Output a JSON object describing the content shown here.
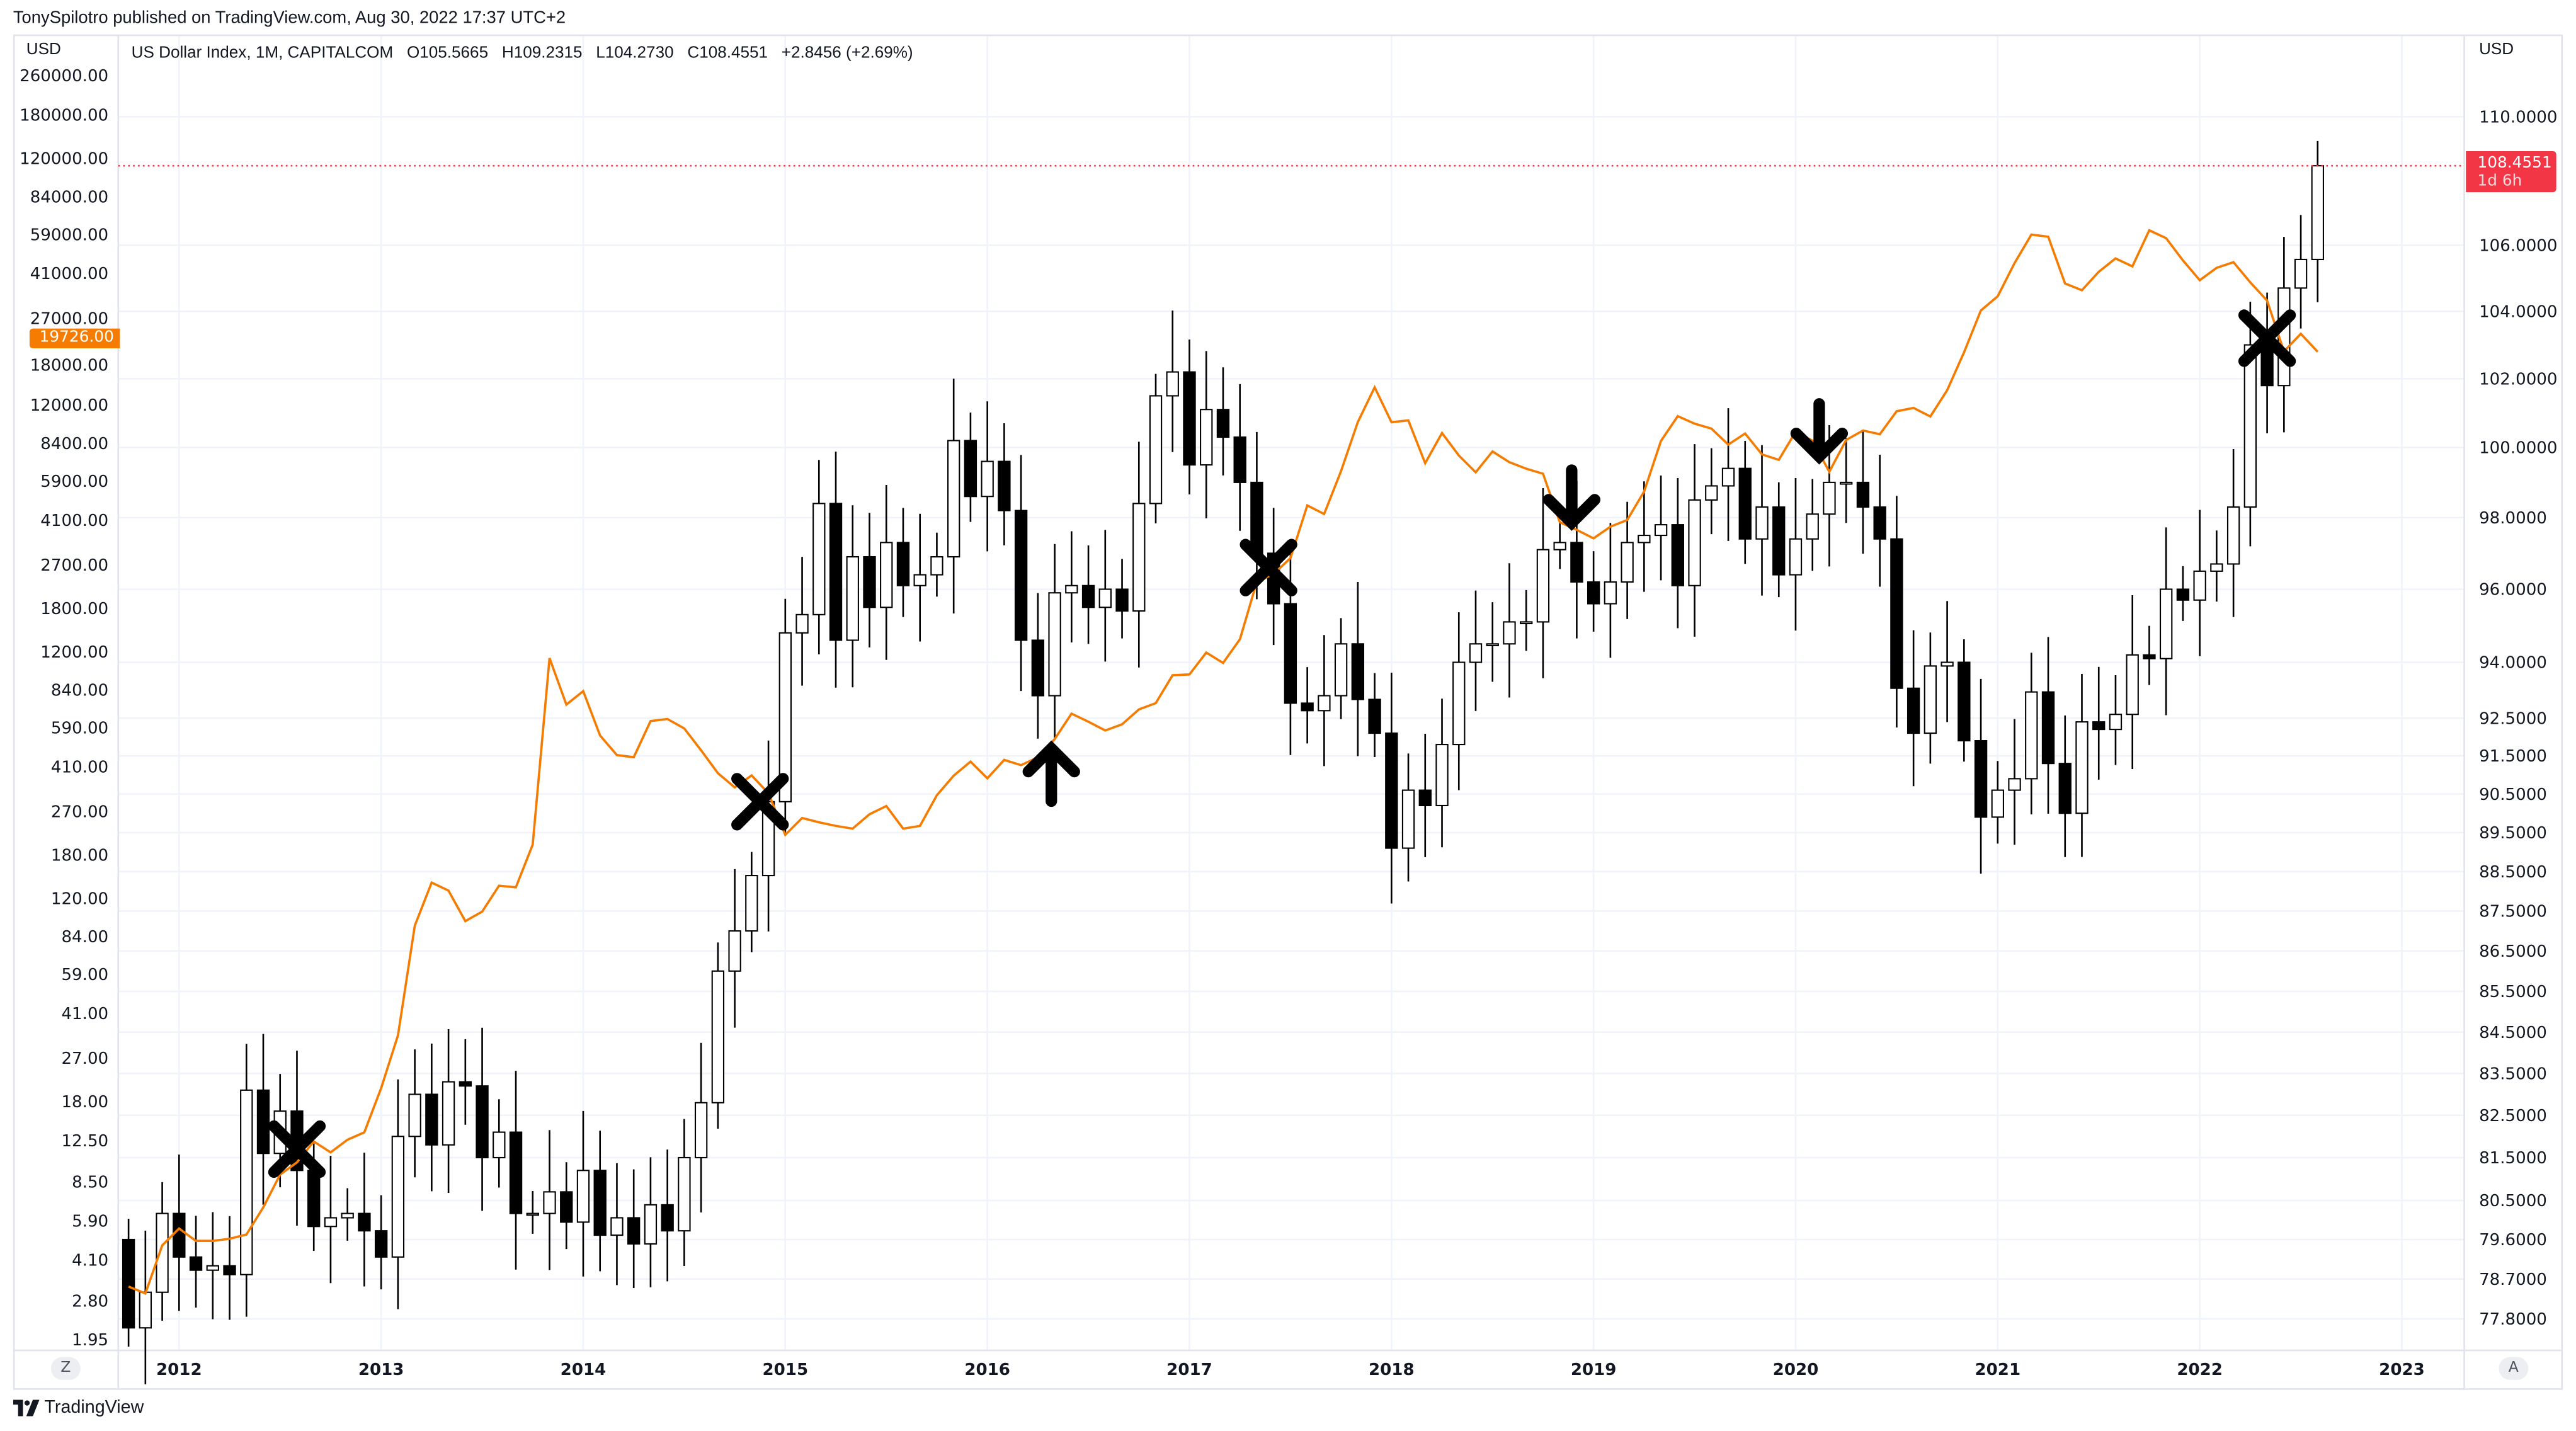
{
  "header": {
    "published": "TonySpilotro published on TradingView.com, Aug 30, 2022 17:37 UTC+2"
  },
  "legend": {
    "symbol": "US Dollar Index, 1M, CAPITALCOM",
    "open": "O105.5665",
    "high": "H109.2315",
    "low": "L104.2730",
    "close": "C108.4551",
    "change": "+2.8456 (+2.69%)"
  },
  "axes": {
    "left_unit": "USD",
    "right_unit": "USD",
    "z_button": "Z",
    "a_button": "A"
  },
  "price_label": {
    "value": "108.4551",
    "countdown": "1d 6h",
    "color": "#f23645"
  },
  "series_label": {
    "value": "19726.00",
    "color": "#f57c00"
  },
  "footer": {
    "brand": "TradingView"
  },
  "chart_data": {
    "type": "candlestick+line",
    "title": "US Dollar Index, 1M, CAPITALCOM",
    "start": "2011-10",
    "interval": "1M",
    "right_axis": {
      "scale": "log",
      "ticks": [
        "110.0000",
        "106.0000",
        "104.0000",
        "102.0000",
        "100.0000",
        "98.0000",
        "96.0000",
        "94.0000",
        "92.5000",
        "91.5000",
        "90.5000",
        "89.5000",
        "88.5000",
        "87.5000",
        "86.5000",
        "85.5000",
        "84.5000",
        "83.5000",
        "82.5000",
        "81.5000",
        "80.5000",
        "79.6000",
        "78.7000",
        "77.8000"
      ],
      "range": [
        77.3,
        111.5
      ]
    },
    "left_axis": {
      "scale": "log",
      "ticks": [
        "260000.00",
        "180000.00",
        "120000.00",
        "84000.00",
        "59000.00",
        "41000.00",
        "27000.00",
        "18000.00",
        "12000.00",
        "8400.00",
        "5900.00",
        "4100.00",
        "2700.00",
        "1800.00",
        "1200.00",
        "840.00",
        "590.00",
        "410.00",
        "270.00",
        "180.00",
        "120.00",
        "84.00",
        "59.00",
        "41.00",
        "27.00",
        "18.00",
        "12.50",
        "8.50",
        "5.90",
        "4.10",
        "2.80",
        "1.95"
      ],
      "range": [
        1.95,
        260000
      ]
    },
    "x_ticks": [
      "2012",
      "2013",
      "2014",
      "2015",
      "2016",
      "2017",
      "2018",
      "2019",
      "2020",
      "2021",
      "2022",
      "2023"
    ],
    "dxy_first_open": 79.6,
    "dxy_close": [
      77.6,
      78.4,
      80.2,
      79.2,
      78.9,
      79.0,
      78.8,
      83.1,
      81.6,
      82.6,
      81.2,
      79.9,
      80.1,
      80.2,
      79.8,
      79.2,
      82.0,
      83.0,
      81.8,
      83.3,
      83.2,
      81.5,
      82.1,
      80.2,
      80.2,
      80.7,
      80.0,
      81.2,
      79.7,
      80.1,
      79.5,
      80.4,
      79.8,
      81.5,
      82.8,
      86.0,
      87.0,
      88.4,
      90.3,
      94.8,
      95.3,
      98.4,
      94.6,
      96.9,
      95.5,
      97.3,
      96.1,
      96.4,
      96.9,
      100.2,
      98.6,
      99.6,
      98.2,
      94.6,
      93.1,
      95.9,
      96.1,
      95.5,
      96.0,
      95.4,
      98.4,
      101.5,
      102.2,
      99.5,
      101.1,
      100.3,
      99.0,
      97.0,
      95.6,
      92.9,
      92.7,
      93.1,
      94.5,
      93.0,
      92.1,
      89.1,
      90.6,
      90.2,
      91.8,
      94.0,
      94.5,
      94.5,
      95.1,
      95.1,
      97.1,
      97.3,
      96.2,
      95.6,
      96.2,
      97.3,
      97.5,
      97.8,
      96.1,
      98.5,
      98.9,
      99.4,
      97.4,
      98.3,
      96.4,
      97.4,
      98.1,
      99.0,
      99.0,
      98.3,
      97.4,
      93.3,
      92.1,
      93.9,
      94.0,
      91.9,
      89.9,
      90.6,
      90.9,
      93.2,
      91.3,
      90.0,
      92.4,
      92.2,
      92.6,
      94.2,
      94.1,
      96.0,
      95.7,
      96.5,
      96.7,
      98.3,
      103.0,
      101.8,
      104.7,
      105.5665,
      108.4551
    ],
    "last_candle": {
      "open": 105.5665,
      "high": 109.2315,
      "low": 104.273,
      "close": 108.4551
    },
    "overlay_series": {
      "name": "orange overlay (left axis)",
      "color": "#f57c00",
      "values": [
        3.2,
        3.0,
        4.7,
        5.5,
        4.9,
        4.9,
        5.0,
        5.2,
        6.7,
        9.1,
        10.2,
        12.4,
        11.2,
        12.6,
        13.5,
        20.4,
        33.4,
        93,
        139,
        129,
        97,
        106,
        135,
        133,
        198,
        1130,
        732,
        830,
        549,
        457,
        448,
        628,
        640,
        586,
        478,
        386,
        338,
        378,
        320,
        217,
        254,
        244,
        236,
        230,
        263,
        284,
        230,
        236,
        314,
        377,
        430,
        368,
        437,
        416,
        448,
        531,
        673,
        624,
        575,
        609,
        700,
        742,
        963,
        970,
        1190,
        1080,
        1348,
        2300,
        2480,
        2875,
        4700,
        4338,
        6468,
        10233,
        14156,
        10221,
        10397,
        6973,
        9240,
        7494,
        6404,
        7780,
        7037,
        6625,
        6318,
        4017,
        3742,
        3457,
        3854,
        4105,
        5351,
        8574,
        10817,
        10085,
        9630,
        8293,
        9199,
        7569,
        7194,
        9350,
        8599,
        6438,
        8658,
        9461,
        9137,
        11323,
        11681,
        10784,
        13781,
        19625,
        29001,
        33114,
        45137,
        58918,
        57750,
        37332,
        35041,
        41626,
        47166,
        43791,
        61318,
        57005,
        46306,
        38483,
        43193,
        45538,
        37714,
        31792,
        19785,
        23336,
        19726
      ]
    },
    "annotations": [
      {
        "type": "x-mark",
        "month_index": 10,
        "price": 81.7
      },
      {
        "type": "x-mark",
        "month_index": 37.5,
        "price": 90.3
      },
      {
        "type": "arrow-up",
        "month_index": 54.8,
        "price": 91.0
      },
      {
        "type": "x-mark",
        "month_index": 67.7,
        "price": 96.6
      },
      {
        "type": "arrow-down",
        "month_index": 85.7,
        "price": 98.6
      },
      {
        "type": "arrow-down",
        "month_index": 100.4,
        "price": 100.5
      },
      {
        "type": "x-mark",
        "month_index": 127,
        "price": 103.2
      }
    ]
  }
}
